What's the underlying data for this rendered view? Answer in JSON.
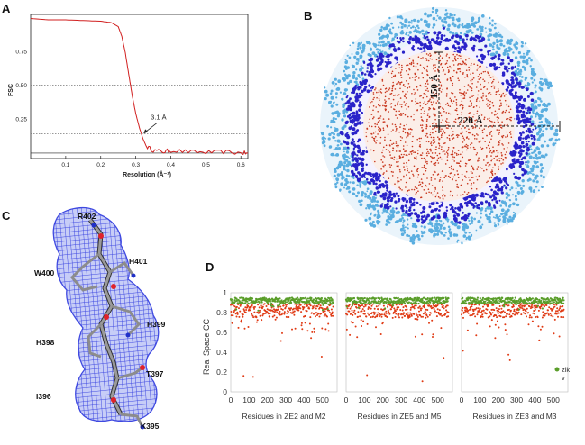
{
  "panels": {
    "A": {
      "label": "A",
      "chart_data": {
        "type": "line",
        "title": "",
        "xlabel": "Resolution (Å⁻¹)",
        "ylabel": "FSC",
        "xlim": [
          0,
          0.62
        ],
        "ylim": [
          -0.04,
          1.02
        ],
        "x_ticks": [
          0.1,
          0.2,
          0.3,
          0.4,
          0.5,
          0.6
        ],
        "x_tick_labels": [
          "0.1",
          "0.2",
          "0.3",
          "0.4",
          "0.5",
          "0.6"
        ],
        "y_ticks": [
          0.25,
          0.5,
          0.75
        ],
        "y_tick_labels": [
          "0.25",
          "0.50",
          "0.75"
        ],
        "reference_lines": [
          0.5,
          0.143,
          0
        ],
        "annotation": "3.1 Å",
        "annotation_at": {
          "x": 0.322,
          "y": 0.143
        },
        "series": [
          {
            "name": "FSC",
            "color": "#d11f1f",
            "x": [
              0.0,
              0.05,
              0.1,
              0.15,
              0.2,
              0.23,
              0.25,
              0.26,
              0.27,
              0.28,
              0.29,
              0.3,
              0.31,
              0.32,
              0.33,
              0.35,
              0.38,
              0.4,
              0.45,
              0.5,
              0.55,
              0.6,
              0.62
            ],
            "y": [
              0.99,
              0.98,
              0.98,
              0.975,
              0.97,
              0.96,
              0.93,
              0.86,
              0.74,
              0.58,
              0.42,
              0.29,
              0.19,
              0.11,
              0.05,
              0.02,
              0.01,
              0.02,
              0.01,
              0.005,
              0.01,
              0.0,
              0.0
            ]
          }
        ]
      }
    },
    "B": {
      "label": "B",
      "dim_vertical": "150 Å",
      "dim_horizontal": "220 Å",
      "colors": {
        "outer": "#5aaee0",
        "middle": "#2a23c9",
        "inner": "#c8371e"
      }
    },
    "C": {
      "label": "C",
      "residues": [
        "R402",
        "H401",
        "W400",
        "H399",
        "H398",
        "T397",
        "I396",
        "K395"
      ],
      "colors": {
        "mesh": "#3f49e0",
        "stick": "#8c8c8c",
        "oxygen": "#e0222a",
        "nitrogen": "#2030c8"
      }
    },
    "D": {
      "label": "D",
      "chart_data": {
        "type": "scatter",
        "ylabel": "Real Space CC",
        "ylim": [
          0,
          1
        ],
        "y_ticks": [
          0,
          0.2,
          0.4,
          0.6,
          0.8,
          1
        ],
        "y_tick_labels": [
          "0",
          "0.2",
          "0.4",
          "0.6",
          "0.8",
          "1"
        ],
        "xlim": [
          0,
          580
        ],
        "x_ticks": [
          0,
          100,
          200,
          300,
          400,
          500
        ],
        "x_tick_labels": [
          "0",
          "100",
          "200",
          "300",
          "400",
          "500"
        ],
        "legend": {
          "placement": "bottom-right",
          "entries": [
            "zik",
            "v"
          ]
        },
        "subplots": [
          {
            "xlabel": "Residues in ZE2 and M2",
            "series": [
              {
                "name": "zik",
                "color": "#5a9e2a",
                "mean": 0.92,
                "min": 0.8
              },
              {
                "name": "v",
                "color": "#e03a14",
                "mean": 0.82,
                "min": 0.1
              }
            ]
          },
          {
            "xlabel": "Residues in ZE5 and M5",
            "series": [
              {
                "name": "zik",
                "color": "#5a9e2a",
                "mean": 0.92,
                "min": 0.8
              },
              {
                "name": "v",
                "color": "#e03a14",
                "mean": 0.82,
                "min": 0.1
              }
            ]
          },
          {
            "xlabel": "Residues in ZE3 and M3",
            "series": [
              {
                "name": "zik",
                "color": "#5a9e2a",
                "mean": 0.92,
                "min": 0.8
              },
              {
                "name": "v",
                "color": "#e03a14",
                "mean": 0.82,
                "min": 0.15
              }
            ]
          }
        ]
      }
    }
  }
}
